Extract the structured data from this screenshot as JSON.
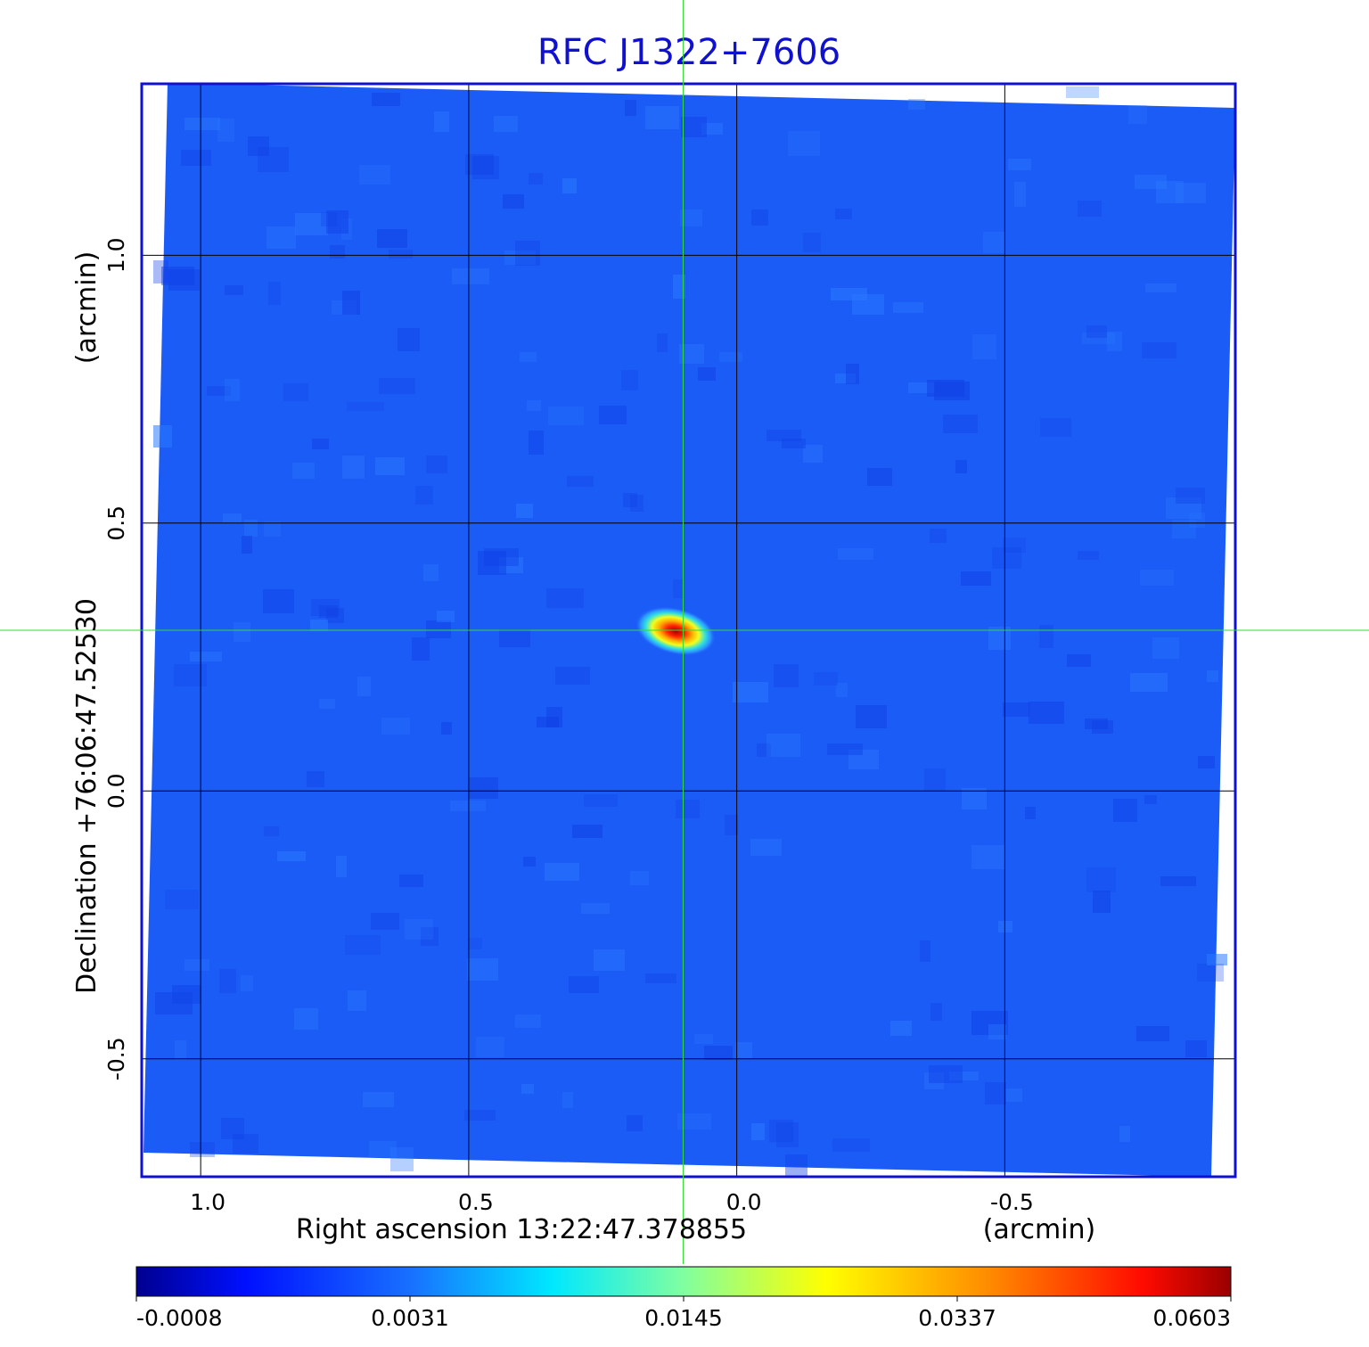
{
  "chart_data": {
    "type": "heatmap",
    "title": "RFC J1322+7606",
    "xlabel": "Right ascension  13:22:47.378855",
    "xunit": "(arcmin)",
    "ylabel": "Declination  +76:06:47.52530",
    "yunit": "(arcmin)",
    "x_ticks": [
      1.0,
      0.5,
      0.0,
      -0.5
    ],
    "x_tick_labels": [
      "1.0",
      "0.5",
      "0.0",
      "-0.5"
    ],
    "y_ticks": [
      1.0,
      0.5,
      0.0,
      -0.5
    ],
    "y_tick_labels": [
      "1.0",
      "0.5",
      "0.0",
      "-0.5"
    ],
    "xlim": [
      1.11,
      -0.93
    ],
    "ylim": [
      -0.72,
      1.32
    ],
    "grid": true,
    "source": {
      "ra_offset_arcmin": 0.1,
      "dec_offset_arcmin": 0.3,
      "peak": 0.0603
    },
    "crosshair": {
      "x_arcmin": 0.1,
      "y_arcmin": 0.3
    },
    "colorbar": {
      "orientation": "horizontal",
      "position": "bottom",
      "colormap": "jet",
      "tick_labels": [
        "-0.0008",
        "0.0031",
        "0.0145",
        "0.0337",
        "0.0603"
      ]
    },
    "colors": {
      "frame": "#1010d0",
      "background_field": "#1c5cf6",
      "crosshair": "#33dd33",
      "grid": "#000000"
    }
  }
}
